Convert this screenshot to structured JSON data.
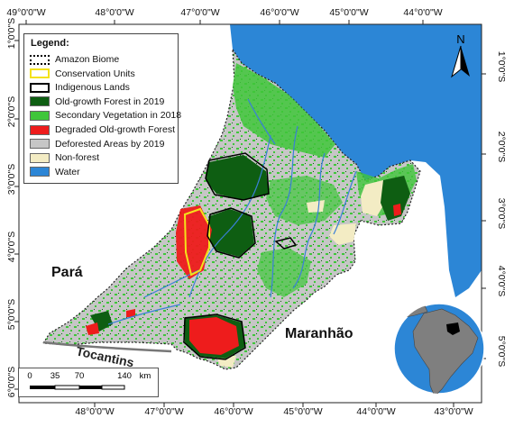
{
  "map": {
    "top_ticks": [
      "49°0'0\"W",
      "48°0'0\"W",
      "47°0'0\"W",
      "46°0'0\"W",
      "45°0'0\"W",
      "44°0'0\"W"
    ],
    "bottom_ticks": [
      "48°0'0\"W",
      "47°0'0\"W",
      "46°0'0\"W",
      "45°0'0\"W",
      "44°0'0\"W",
      "43°0'0\"W"
    ],
    "left_ticks": [
      "1°0'0\"S",
      "2°0'0\"S",
      "3°0'0\"S",
      "4°0'0\"S",
      "5°0'0\"S",
      "6°0'0\"S"
    ],
    "right_ticks": [
      "1°0'0\"S",
      "2°0'0\"S",
      "3°0'0\"S",
      "4°0'0\"S",
      "5°0'0\"S"
    ],
    "places": {
      "para": "Pará",
      "maranhao": "Maranhão",
      "tocantins": "Tocantins"
    },
    "north_label": "N"
  },
  "legend": {
    "title": "Legend:",
    "items": [
      {
        "label": "Amazon Biome",
        "style": "dotted",
        "color": "#000000"
      },
      {
        "label": "Conservation Units",
        "style": "outline",
        "color": "#f4e21a"
      },
      {
        "label": "Indigenous Lands",
        "style": "outline",
        "color": "#000000"
      },
      {
        "label": "Old-growth Forest in 2019",
        "style": "fill",
        "color": "#0e5e12"
      },
      {
        "label": "Secondary Vegetation in 2018",
        "style": "fill",
        "color": "#3fc63a"
      },
      {
        "label": "Degraded Old-growth Forest",
        "style": "fill",
        "color": "#ee1c1c"
      },
      {
        "label": "Deforested Areas  by 2019",
        "style": "fill",
        "color": "#c6c6c6"
      },
      {
        "label": "Non-forest",
        "style": "fill",
        "color": "#f3ecc4"
      },
      {
        "label": "Water",
        "style": "fill",
        "color": "#2c86d6"
      }
    ]
  },
  "scalebar": {
    "ticks": [
      "0",
      "35",
      "70",
      "140"
    ],
    "unit": "km"
  },
  "colors": {
    "ocean": "#2c86d6",
    "deforested": "#c6c6c6",
    "secondary": "#3fc63a",
    "old_growth": "#0e5e12",
    "degraded": "#ee1c1c",
    "non_forest": "#f3ecc4",
    "river": "#3a7fd8"
  }
}
